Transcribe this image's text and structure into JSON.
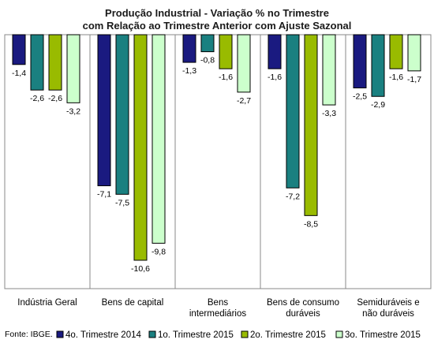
{
  "chart_data": {
    "type": "bar",
    "title": "Produção Industrial - Variação % no Trimestre",
    "subtitle": "com Relação ao Trimestre Anterior com Ajuste Sazonal",
    "source": "Fonte: IBGE.",
    "categories": [
      [
        "Indústria Geral"
      ],
      [
        "Bens de capital"
      ],
      [
        "Bens",
        "intermediários"
      ],
      [
        "Bens de consumo",
        "duráveis"
      ],
      [
        "Semiduráveis e",
        "não duráveis"
      ]
    ],
    "series": [
      {
        "name": "4o. Trimestre 2014",
        "color": "#1a1a80",
        "values": [
          -1.4,
          -7.1,
          -1.3,
          -1.6,
          -2.5
        ],
        "labels": [
          "-1,4",
          "-7,1",
          "-1,3",
          "-1,6",
          "-2,5"
        ]
      },
      {
        "name": "1o. Trimestre 2015",
        "color": "#1a8080",
        "values": [
          -2.6,
          -7.5,
          -0.8,
          -7.2,
          -2.9
        ],
        "labels": [
          "-2,6",
          "-7,5",
          "-0,8",
          "-7,2",
          "-2,9"
        ]
      },
      {
        "name": "2o. Trimestre 2015",
        "color": "#99bb00",
        "values": [
          -2.6,
          -10.6,
          -1.6,
          -8.5,
          -1.6
        ],
        "labels": [
          "-2,6",
          "-10,6",
          "-1,6",
          "-8,5",
          "-1,6"
        ]
      },
      {
        "name": "3o. Trimestre 2015",
        "color": "#ccffcc",
        "values": [
          -3.2,
          -9.8,
          -2.7,
          -3.3,
          -1.7
        ],
        "labels": [
          "-3,2",
          "-9,8",
          "-2,7",
          "-3,3",
          "-1,7"
        ]
      }
    ],
    "ylim": [
      -12,
      0
    ],
    "grid": false,
    "legend_position": "bottom"
  }
}
